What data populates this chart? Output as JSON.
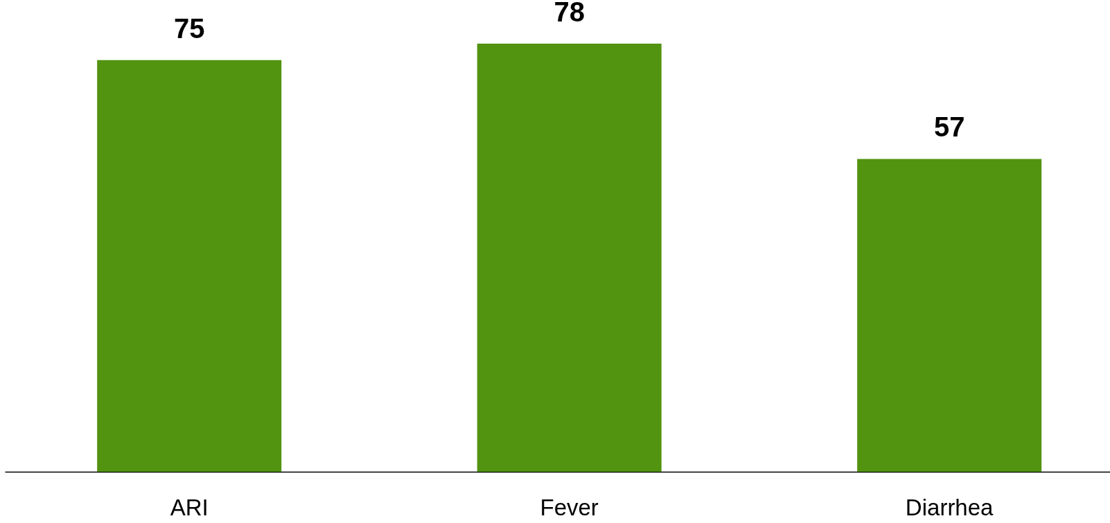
{
  "chart_data": {
    "type": "bar",
    "categories": [
      "ARI",
      "Fever",
      "Diarrhea"
    ],
    "values": [
      75,
      78,
      57
    ],
    "color": "#52930f",
    "data_labels": true
  }
}
